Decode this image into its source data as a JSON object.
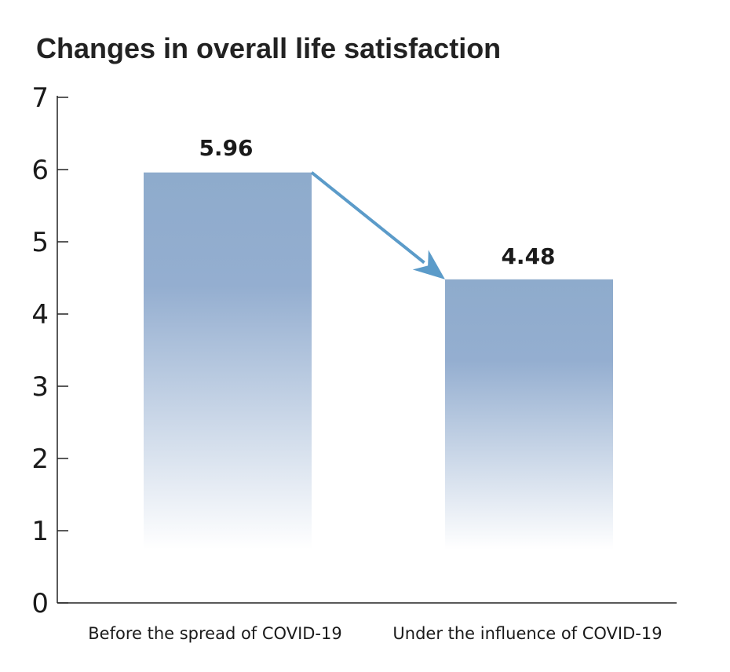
{
  "chart_data": {
    "type": "bar",
    "title": "Changes in overall life satisfaction",
    "categories": [
      "Before the spread of COVID-19",
      "Under the influence of COVID-19"
    ],
    "values": [
      5.96,
      4.48
    ],
    "value_labels": [
      "5.96",
      "4.48"
    ],
    "ylim": [
      0,
      7
    ],
    "yticks": [
      "0",
      "1",
      "2",
      "3",
      "4",
      "5",
      "6",
      "7"
    ],
    "xlabel": "",
    "ylabel": "",
    "grid": false,
    "legend": "none",
    "annotation": "arrow from first bar top to second bar top",
    "colors": {
      "bar_top": "#8eabcc",
      "bar_bottom": "#ffffff",
      "arrow": "#5b9bc9",
      "axis": "#222222"
    }
  }
}
